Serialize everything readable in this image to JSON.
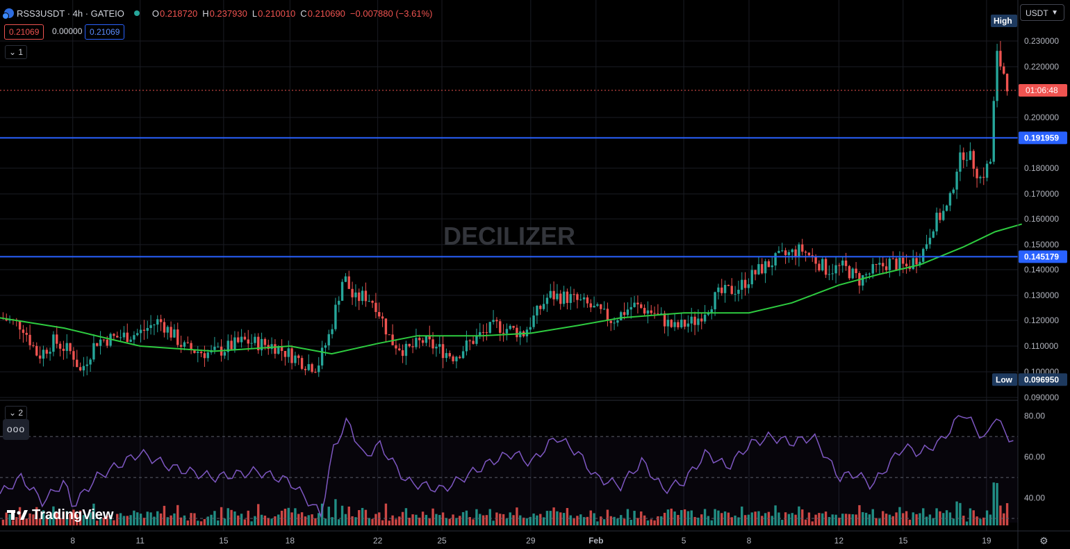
{
  "header": {
    "symbol": "RSS3USDT · 4h · GATEIO",
    "open_label": "O",
    "open": "0.218720",
    "high_label": "H",
    "high": "0.237930",
    "low_label": "L",
    "low": "0.210010",
    "close_label": "C",
    "close": "0.210690",
    "change": "−0.007880 (−3.61%)"
  },
  "price_boxes": {
    "bid": "0.21069",
    "spread": "0.00000",
    "ask": "0.21069"
  },
  "pane_toggles": {
    "main": "1",
    "indicator": "2"
  },
  "currency_selector": "USDT",
  "watermark": "DECILIZER",
  "branding": "TradingView",
  "more_button": "ooo",
  "colors": {
    "up": "#26a69a",
    "down": "#ef5350",
    "ma": "#2ecc40",
    "rsi": "#7e57c2",
    "level": "#2962ff"
  },
  "chart_data": [
    {
      "type": "candlestick",
      "title": "RSS3USDT · 4h · GATEIO",
      "ylim": [
        0.09,
        0.237
      ],
      "y_ticks": [
        "0.090000",
        "0.100000",
        "0.110000",
        "0.120000",
        "0.130000",
        "0.140000",
        "0.150000",
        "0.160000",
        "0.170000",
        "0.180000",
        "0.200000",
        "0.220000",
        "0.230000"
      ],
      "x_ticks": [
        "8",
        "11",
        "15",
        "18",
        "22",
        "25",
        "29",
        "Feb",
        "5",
        "8",
        "12",
        "15",
        "19"
      ],
      "x_tick_fraction": [
        0.068,
        0.131,
        0.209,
        0.271,
        0.353,
        0.413,
        0.496,
        0.557,
        0.639,
        0.7,
        0.784,
        0.844,
        0.922
      ],
      "anchor_points": [
        [
          0.0,
          0.121
        ],
        [
          0.02,
          0.118
        ],
        [
          0.035,
          0.106
        ],
        [
          0.05,
          0.112
        ],
        [
          0.068,
          0.107
        ],
        [
          0.075,
          0.1
        ],
        [
          0.09,
          0.112
        ],
        [
          0.131,
          0.115
        ],
        [
          0.15,
          0.12
        ],
        [
          0.175,
          0.109
        ],
        [
          0.2,
          0.107
        ],
        [
          0.23,
          0.112
        ],
        [
          0.26,
          0.11
        ],
        [
          0.29,
          0.103
        ],
        [
          0.3,
          0.102
        ],
        [
          0.312,
          0.115
        ],
        [
          0.325,
          0.138
        ],
        [
          0.335,
          0.128
        ],
        [
          0.345,
          0.13
        ],
        [
          0.355,
          0.127
        ],
        [
          0.37,
          0.112
        ],
        [
          0.385,
          0.108
        ],
        [
          0.4,
          0.112
        ],
        [
          0.43,
          0.106
        ],
        [
          0.45,
          0.113
        ],
        [
          0.47,
          0.118
        ],
        [
          0.496,
          0.115
        ],
        [
          0.52,
          0.13
        ],
        [
          0.54,
          0.129
        ],
        [
          0.557,
          0.126
        ],
        [
          0.58,
          0.12
        ],
        [
          0.6,
          0.126
        ],
        [
          0.62,
          0.123
        ],
        [
          0.639,
          0.117
        ],
        [
          0.66,
          0.12
        ],
        [
          0.68,
          0.13
        ],
        [
          0.7,
          0.133
        ],
        [
          0.72,
          0.14
        ],
        [
          0.74,
          0.145
        ],
        [
          0.76,
          0.148
        ],
        [
          0.77,
          0.145
        ],
        [
          0.784,
          0.14
        ],
        [
          0.8,
          0.141
        ],
        [
          0.815,
          0.136
        ],
        [
          0.83,
          0.14
        ],
        [
          0.844,
          0.143
        ],
        [
          0.86,
          0.141
        ],
        [
          0.875,
          0.147
        ],
        [
          0.885,
          0.158
        ],
        [
          0.9,
          0.165
        ],
        [
          0.907,
          0.18
        ],
        [
          0.915,
          0.187
        ],
        [
          0.922,
          0.183
        ],
        [
          0.93,
          0.176
        ],
        [
          0.94,
          0.183
        ],
        [
          0.945,
          0.225
        ],
        [
          0.952,
          0.218
        ],
        [
          0.957,
          0.211
        ]
      ],
      "ma_points": [
        [
          0.0,
          0.121
        ],
        [
          0.06,
          0.117
        ],
        [
          0.1,
          0.113
        ],
        [
          0.131,
          0.11
        ],
        [
          0.2,
          0.108
        ],
        [
          0.271,
          0.11
        ],
        [
          0.31,
          0.107
        ],
        [
          0.353,
          0.111
        ],
        [
          0.39,
          0.114
        ],
        [
          0.45,
          0.114
        ],
        [
          0.496,
          0.115
        ],
        [
          0.54,
          0.118
        ],
        [
          0.58,
          0.121
        ],
        [
          0.639,
          0.123
        ],
        [
          0.7,
          0.123
        ],
        [
          0.74,
          0.127
        ],
        [
          0.784,
          0.134
        ],
        [
          0.82,
          0.138
        ],
        [
          0.86,
          0.142
        ],
        [
          0.9,
          0.149
        ],
        [
          0.93,
          0.155
        ],
        [
          0.955,
          0.158
        ]
      ],
      "horizontal_levels": [
        {
          "value": 0.191959,
          "label": "0.191959"
        },
        {
          "value": 0.145179,
          "label": "0.145179"
        }
      ],
      "last_price": {
        "value": 0.21069,
        "countdown": "01:06:48"
      },
      "high_marker": {
        "label": "High"
      },
      "low_marker": {
        "label": "Low",
        "value": "0.096950"
      },
      "series_count": 300
    },
    {
      "type": "rsi_volume",
      "ylim": [
        30,
        85
      ],
      "y_ticks": [
        "80.00",
        "60.00",
        "40.00"
      ],
      "levels": [
        70,
        50,
        30
      ],
      "rsi_anchor_points": [
        [
          0.0,
          42
        ],
        [
          0.02,
          50
        ],
        [
          0.04,
          38
        ],
        [
          0.06,
          48
        ],
        [
          0.068,
          36
        ],
        [
          0.09,
          50
        ],
        [
          0.131,
          62
        ],
        [
          0.16,
          55
        ],
        [
          0.2,
          50
        ],
        [
          0.24,
          53
        ],
        [
          0.271,
          48
        ],
        [
          0.3,
          32
        ],
        [
          0.312,
          65
        ],
        [
          0.325,
          78
        ],
        [
          0.34,
          60
        ],
        [
          0.355,
          66
        ],
        [
          0.38,
          48
        ],
        [
          0.413,
          44
        ],
        [
          0.44,
          52
        ],
        [
          0.46,
          58
        ],
        [
          0.48,
          62
        ],
        [
          0.496,
          57
        ],
        [
          0.52,
          70
        ],
        [
          0.54,
          62
        ],
        [
          0.557,
          50
        ],
        [
          0.58,
          46
        ],
        [
          0.6,
          58
        ],
        [
          0.62,
          44
        ],
        [
          0.639,
          48
        ],
        [
          0.66,
          62
        ],
        [
          0.68,
          55
        ],
        [
          0.7,
          66
        ],
        [
          0.72,
          70
        ],
        [
          0.74,
          67
        ],
        [
          0.76,
          70
        ],
        [
          0.77,
          62
        ],
        [
          0.784,
          50
        ],
        [
          0.8,
          52
        ],
        [
          0.815,
          46
        ],
        [
          0.83,
          56
        ],
        [
          0.844,
          65
        ],
        [
          0.86,
          62
        ],
        [
          0.88,
          68
        ],
        [
          0.9,
          82
        ],
        [
          0.915,
          72
        ],
        [
          0.922,
          68
        ],
        [
          0.93,
          82
        ],
        [
          0.94,
          70
        ],
        [
          0.947,
          69
        ]
      ],
      "volume_note": "volume bars colored by candle direction"
    }
  ]
}
